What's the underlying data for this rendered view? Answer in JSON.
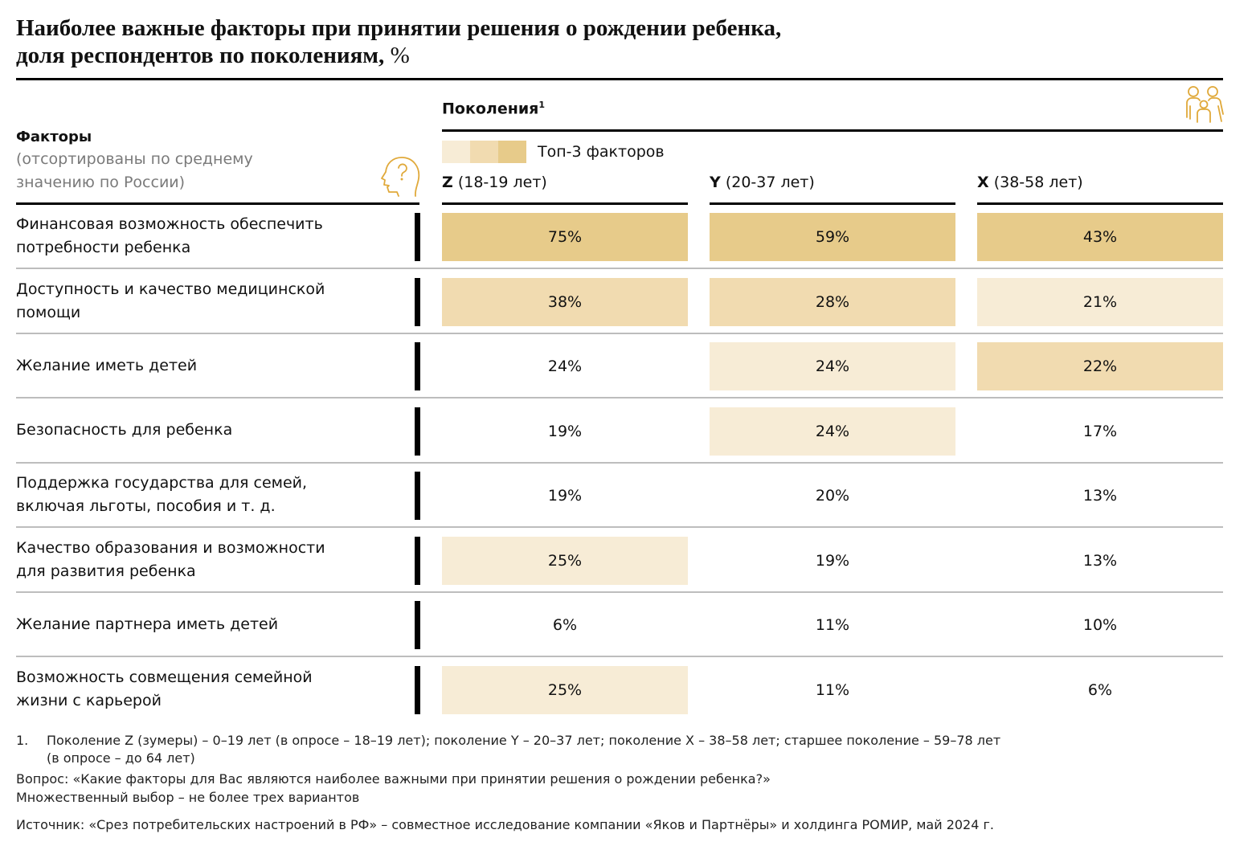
{
  "title": {
    "line1": "Наиболее важные факторы при принятии решения о рождении ребенка,",
    "line2": "доля респондентов по поколениям,",
    "unit": "%"
  },
  "generations_header": {
    "label": "Поколения",
    "footnote_ref": "1"
  },
  "icons": {
    "family": "family-icon",
    "head": "head-question-icon"
  },
  "legend": {
    "label": "Топ-3 факторов",
    "tiers": [
      {
        "rank": 3,
        "color": "#f7ecd6"
      },
      {
        "rank": 2,
        "color": "#f1dbb0"
      },
      {
        "rank": 1,
        "color": "#e7cb8a"
      }
    ]
  },
  "factors_header": {
    "title": "Факторы",
    "subtitle_line1": "(отсортированы по среднему",
    "subtitle_line2": "значению по России)"
  },
  "columns": [
    {
      "letter": "Z",
      "range": "(18-19 лет)"
    },
    {
      "letter": "Y",
      "range": "(20-37 лет)"
    },
    {
      "letter": "X",
      "range": "(38-58 лет)"
    }
  ],
  "chart_data": {
    "type": "table",
    "title": "Наиболее важные факторы при принятии решения о рождении ребенка, доля респондентов по поколениям, %",
    "categories": [
      "Z (18-19 лет)",
      "Y (20-37 лет)",
      "X (38-58 лет)"
    ],
    "rows": [
      {
        "factor_lines": [
          "Финансовая возможность обеспечить",
          "потребности ребенка"
        ],
        "values": [
          75,
          59,
          43
        ],
        "labels": [
          "75%",
          "59%",
          "43%"
        ],
        "top_rank": [
          1,
          1,
          1
        ]
      },
      {
        "factor_lines": [
          "Доступность и качество медицинской",
          "помощи"
        ],
        "values": [
          38,
          28,
          21
        ],
        "labels": [
          "38%",
          "28%",
          "21%"
        ],
        "top_rank": [
          2,
          2,
          3
        ]
      },
      {
        "factor_lines": [
          "Желание иметь детей"
        ],
        "values": [
          24,
          24,
          22
        ],
        "labels": [
          "24%",
          "24%",
          "22%"
        ],
        "top_rank": [
          0,
          3,
          2
        ]
      },
      {
        "factor_lines": [
          "Безопасность для ребенка"
        ],
        "values": [
          19,
          24,
          17
        ],
        "labels": [
          "19%",
          "24%",
          "17%"
        ],
        "top_rank": [
          0,
          3,
          0
        ]
      },
      {
        "factor_lines": [
          "Поддержка государства для семей,",
          "включая льготы, пособия и т. д."
        ],
        "values": [
          19,
          20,
          13
        ],
        "labels": [
          "19%",
          "20%",
          "13%"
        ],
        "top_rank": [
          0,
          0,
          0
        ]
      },
      {
        "factor_lines": [
          "Качество образования и возможности",
          "для развития ребенка"
        ],
        "values": [
          25,
          19,
          13
        ],
        "labels": [
          "25%",
          "19%",
          "13%"
        ],
        "top_rank": [
          3,
          0,
          0
        ]
      },
      {
        "factor_lines": [
          "Желание партнера иметь детей"
        ],
        "values": [
          6,
          11,
          10
        ],
        "labels": [
          "6%",
          "11%",
          "10%"
        ],
        "top_rank": [
          0,
          0,
          0
        ]
      },
      {
        "factor_lines": [
          "Возможность совмещения семейной",
          "жизни с карьерой"
        ],
        "values": [
          25,
          11,
          6
        ],
        "labels": [
          "25%",
          "11%",
          "6%"
        ],
        "top_rank": [
          3,
          0,
          0
        ]
      }
    ]
  },
  "footnotes": {
    "note1_number": "1.",
    "note1_line1": "Поколение Z (зумеры) – 0–19 лет (в опросе – 18–19 лет); поколение Y – 20–37 лет; поколение X – 38–58 лет; старшее поколение – 59–78 лет",
    "note1_line2": "(в опросе – до 64 лет)",
    "question": "Вопрос: «Какие факторы для Вас являются наиболее важными при принятии решения о рождении ребенка?»",
    "multiple_choice": "Множественный выбор – не более трех вариантов",
    "source": "Источник: «Срез потребительских настроений в РФ» – совместное исследование компании «Яков и Партнёры» и холдинга РОМИР, май 2024 г."
  }
}
